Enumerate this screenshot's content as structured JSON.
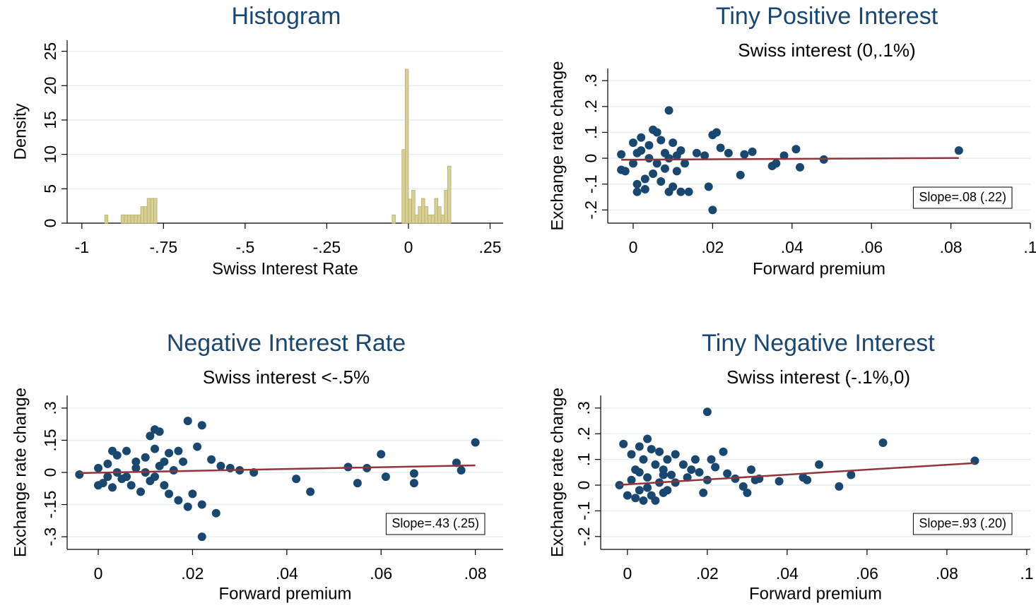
{
  "chart_data": [
    {
      "type": "histogram",
      "title": "Histogram",
      "x_label": "Swiss Interest Rate",
      "y_label": "Density",
      "bins": [
        -0.93,
        -0.92,
        -0.91,
        -0.9,
        -0.89,
        -0.88,
        -0.87,
        -0.86,
        -0.85,
        -0.84,
        -0.83,
        -0.82,
        -0.81,
        -0.8,
        -0.79,
        -0.78,
        -0.77,
        -0.05,
        -0.04,
        -0.03,
        -0.02,
        -0.01,
        0,
        0.01,
        0.02,
        0.03,
        0.04,
        0.05,
        0.06,
        0.07,
        0.08,
        0.09,
        0.1,
        0.11,
        0.12,
        0.13
      ],
      "values": [
        1.2,
        0,
        0,
        0,
        0,
        1.2,
        1.2,
        1.2,
        1.2,
        1.2,
        1.2,
        2.4,
        2.4,
        3.6,
        3.6,
        3.6,
        0,
        1.2,
        0,
        0,
        10.7,
        22.4,
        3.5,
        4.8,
        1.2,
        2.4,
        3.6,
        2.4,
        1.2,
        1.2,
        3.6,
        2.4,
        1.2,
        4.8,
        8.3
      ],
      "color": "#d7cf94",
      "xlim": [
        -1.045,
        0.29
      ],
      "ylim": [
        0,
        26.6
      ],
      "xticks": [
        -1,
        {
          "value": -0.75,
          "label": "-.75"
        },
        {
          "value": -0.5,
          "label": "-.5"
        },
        {
          "value": -0.25,
          "label": "-.25"
        },
        0,
        {
          "value": 0.25,
          "label": ".25"
        }
      ],
      "yticks": [
        0,
        5,
        10,
        15,
        20,
        25
      ],
      "grid": true
    },
    {
      "type": "scatter",
      "title": "Tiny Positive Interest",
      "subtitle": "Swiss interest (0,.1%)",
      "x_label": "Forward premium",
      "y_label": "Exchange rate change",
      "annotation": "Slope=.08 (.22)",
      "x": [
        0.009,
        0.02,
        0.02,
        0.021,
        0.022,
        0.024,
        0.027,
        0.028,
        0.03,
        0.035,
        0.036,
        0.038,
        0.041,
        0.042,
        0.048,
        0.082,
        0.019,
        0.016,
        0.014,
        0.012,
        0.018,
        -0.003,
        -0.003,
        -0.002,
        0,
        0.001,
        0.001,
        0.002,
        0.003,
        0.004,
        0.005,
        0.006,
        0.007,
        0.008,
        0.009,
        0.01,
        0.011,
        0.012,
        0.004,
        0.006,
        0.002,
        0.008,
        0.003,
        0.005,
        0.01,
        0.001,
        0.007,
        0,
        0.009,
        0.011,
        0.013
      ],
      "values": [
        0.185,
        -0.2,
        0.09,
        0.1,
        0.04,
        0.02,
        -0.065,
        0.015,
        0.025,
        -0.03,
        -0.02,
        0.01,
        0.035,
        -0.035,
        -0.005,
        0.03,
        -0.11,
        0.02,
        -0.13,
        -0.13,
        0.01,
        0.015,
        -0.045,
        -0.05,
        0.06,
        -0.1,
        -0.13,
        0.08,
        -0.12,
        0.05,
        -0.06,
        0.1,
        -0.09,
        0.02,
        -0.13,
        0.06,
        -0.05,
        0.03,
        0,
        -0.02,
        0.03,
        -0.04,
        -0.08,
        0.11,
        -0.11,
        0.02,
        0.07,
        -0.02,
        0,
        0.01,
        -0.02
      ],
      "color": "#1a476f",
      "fit": {
        "x": [
          -0.003,
          0.082
        ],
        "values": [
          -0.006,
          0.001
        ],
        "color": "#90353b"
      },
      "xlim": [
        -0.0064,
        0.1
      ],
      "ylim": [
        -0.251,
        0.347
      ],
      "xticks": [
        0,
        {
          "value": 0.02,
          "label": ".02"
        },
        {
          "value": 0.04,
          "label": ".04"
        },
        {
          "value": 0.06,
          "label": ".06"
        },
        {
          "value": 0.08,
          "label": ".08"
        },
        {
          "value": 0.1,
          "label": ".1"
        }
      ],
      "yticks": [
        {
          "value": -0.2,
          "label": "-.2"
        },
        {
          "value": -0.1,
          "label": "-.1"
        },
        0,
        {
          "value": 0.1,
          "label": ".1"
        },
        {
          "value": 0.2,
          "label": ".2"
        },
        {
          "value": 0.3,
          "label": ".3"
        }
      ],
      "grid": true
    },
    {
      "type": "scatter",
      "title": "Negative Interest Rate",
      "subtitle": "Swiss interest <-.5%",
      "x_label": "Forward premium",
      "y_label": "Exchange rate change",
      "annotation": "Slope=.43 (.25)",
      "x": [
        0.019,
        0.022,
        0.012,
        0.013,
        0.011,
        0.022,
        0.025,
        0.019,
        0.022,
        0.017,
        0.015,
        0.045,
        0.042,
        0.055,
        0.057,
        0.053,
        0.06,
        0.061,
        0.067,
        0.067,
        0.076,
        0.077,
        0.08,
        0.033,
        0.03,
        0.028,
        0.026,
        0.024,
        0.021,
        0.02,
        -0.004,
        0,
        0.001,
        0.002,
        0.003,
        0.004,
        0.005,
        0.006,
        0.007,
        0.008,
        0.009,
        0.01,
        0.011,
        0.012,
        0.013,
        0.014,
        0.015,
        0.016,
        0.017,
        0.018,
        0.004,
        0.006,
        0.008,
        0.01,
        0.002,
        0.012,
        0.014,
        0.003,
        0
      ],
      "values": [
        0.24,
        0.22,
        0.2,
        0.19,
        0.17,
        -0.3,
        -0.19,
        -0.16,
        -0.15,
        -0.13,
        -0.1,
        -0.09,
        -0.03,
        -0.05,
        0.02,
        0.025,
        0.085,
        -0.02,
        -0.005,
        -0.05,
        0.045,
        0.01,
        0.14,
        0,
        0.01,
        0.02,
        0.03,
        0.06,
        0.12,
        -0.1,
        -0.01,
        0.02,
        -0.05,
        0.04,
        -0.07,
        0.08,
        -0.03,
        0.1,
        -0.06,
        0.05,
        -0.09,
        0.07,
        -0.04,
        0.11,
        0.03,
        -0.06,
        0.09,
        0.01,
        0.1,
        0.05,
        0,
        -0.02,
        0.02,
        0,
        -0.02,
        -0.02,
        0.05,
        0.1,
        -0.06
      ],
      "color": "#1a476f",
      "fit": {
        "x": [
          -0.004,
          0.08
        ],
        "values": [
          -0.003,
          0.033
        ],
        "color": "#90353b"
      },
      "xlim": [
        -0.0066,
        0.0859
      ],
      "ylim": [
        -0.359,
        0.359
      ],
      "xticks": [
        0,
        {
          "value": 0.02,
          "label": ".02"
        },
        {
          "value": 0.04,
          "label": ".04"
        },
        {
          "value": 0.06,
          "label": ".06"
        },
        {
          "value": 0.08,
          "label": ".08"
        }
      ],
      "yticks": [
        {
          "value": -0.3,
          "label": "-.3"
        },
        {
          "value": -0.15,
          "label": "-.15"
        },
        0,
        {
          "value": 0.15,
          "label": ".15"
        },
        {
          "value": 0.3,
          "label": ".3"
        }
      ],
      "grid": true
    },
    {
      "type": "scatter",
      "title": "Tiny Negative Interest",
      "subtitle": "Swiss interest (-.1%,0)",
      "x_label": "Forward premium",
      "y_label": "Exchange rate change",
      "annotation": "Slope=.93 (.20)",
      "x": [
        0.02,
        0.064,
        0.087,
        0.056,
        0.053,
        0.048,
        0.044,
        0.045,
        0.038,
        0.033,
        0.032,
        0.031,
        0.03,
        0.029,
        0.027,
        0.025,
        0.024,
        0.022,
        0.021,
        0.02,
        0.019,
        0.018,
        0.017,
        0.016,
        0.015,
        0.014,
        0.012,
        0.01,
        0.009,
        -0.002,
        -0.001,
        0,
        0.001,
        0.002,
        0.002,
        0.003,
        0.003,
        0.004,
        0.004,
        0.005,
        0.005,
        0.006,
        0.006,
        0.007,
        0.007,
        0.008,
        0.008,
        0.009,
        0.009,
        0.01,
        0.011,
        0.012,
        0.001,
        0.003,
        0.005
      ],
      "values": [
        0.285,
        0.165,
        0.095,
        0.04,
        -0.005,
        0.08,
        0.03,
        0.02,
        0.015,
        0.025,
        0.02,
        0.06,
        -0.03,
        -0.005,
        0.025,
        0.045,
        0.13,
        0.07,
        0.1,
        0.02,
        -0.03,
        0.05,
        0.1,
        0.06,
        0.03,
        0.08,
        0.12,
        0.1,
        0.04,
        0,
        0.16,
        -0.04,
        0.12,
        -0.05,
        0.06,
        0.15,
        -0.02,
        0.1,
        -0.06,
        0.18,
        0.03,
        -0.04,
        0.14,
        0.08,
        -0.06,
        0.01,
        0.13,
        -0.03,
        0.06,
        -0.02,
        0.04,
        0.01,
        0.02,
        0.05,
        -0.01
      ],
      "color": "#1a476f",
      "fit": {
        "x": [
          -0.002,
          0.087
        ],
        "values": [
          0.001,
          0.086
        ],
        "color": "#90353b"
      },
      "xlim": [
        -0.0067,
        0.1009
      ],
      "ylim": [
        -0.25,
        0.349
      ],
      "xticks": [
        0,
        {
          "value": 0.02,
          "label": ".02"
        },
        {
          "value": 0.04,
          "label": ".04"
        },
        {
          "value": 0.06,
          "label": ".06"
        },
        {
          "value": 0.08,
          "label": ".08"
        },
        {
          "value": 0.1,
          "label": ".1"
        }
      ],
      "yticks": [
        {
          "value": -0.2,
          "label": "-.2"
        },
        {
          "value": -0.1,
          "label": "-.1"
        },
        0,
        {
          "value": 0.1,
          "label": ".1"
        },
        {
          "value": 0.2,
          "label": ".2"
        },
        {
          "value": 0.3,
          "label": ".3"
        }
      ],
      "grid": true
    }
  ]
}
